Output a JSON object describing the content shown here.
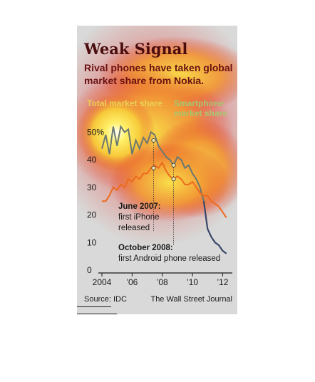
{
  "title": "Weak Signal",
  "subtitle": "Rival phones have taken global market share from Nokia.",
  "legend": {
    "total": "Total market share",
    "smartphone": "Smartphone market share"
  },
  "source": "Source: IDC",
  "credit": "The Wall Street Journal",
  "colors": {
    "total_line": "#ec6a1e",
    "smartphone_line": "#6b7770",
    "smartphone_line_late": "#3a466a"
  },
  "chart_data": {
    "type": "line",
    "title": "Weak Signal",
    "subtitle": "Rival phones have taken global market share from Nokia.",
    "xlabel": "",
    "ylabel": "",
    "x_range": [
      2004,
      2012.5
    ],
    "ylim": [
      0,
      55
    ],
    "y_ticks": [
      0,
      10,
      20,
      30,
      40,
      "50%"
    ],
    "x_ticks": [
      "2004",
      "’06",
      "’08",
      "’10",
      "’12"
    ],
    "x_tick_values": [
      2004,
      2006,
      2008,
      2010,
      2012
    ],
    "grid": false,
    "legend_placement": "top",
    "series": [
      {
        "name": "Total market share",
        "x": [
          2004.0,
          2004.25,
          2004.5,
          2004.75,
          2005.0,
          2005.25,
          2005.5,
          2005.75,
          2006.0,
          2006.25,
          2006.5,
          2006.75,
          2007.0,
          2007.25,
          2007.5,
          2007.75,
          2008.0,
          2008.25,
          2008.5,
          2008.75,
          2009.0,
          2009.25,
          2009.5,
          2009.75,
          2010.0,
          2010.25,
          2010.5,
          2010.75,
          2011.0,
          2011.25,
          2011.5,
          2011.75,
          2012.0,
          2012.25
        ],
        "values": [
          25,
          25,
          27,
          30,
          29,
          31,
          30,
          33,
          32,
          34,
          33,
          35,
          35,
          37,
          38,
          37,
          39,
          36,
          34,
          33,
          34,
          33,
          31,
          31,
          32,
          30,
          28,
          27,
          27,
          25,
          24,
          23,
          21,
          19
        ]
      },
      {
        "name": "Smartphone market share",
        "x": [
          2004.0,
          2004.25,
          2004.5,
          2004.75,
          2005.0,
          2005.25,
          2005.5,
          2005.75,
          2006.0,
          2006.25,
          2006.5,
          2006.75,
          2007.0,
          2007.25,
          2007.5,
          2007.75,
          2008.0,
          2008.25,
          2008.5,
          2008.75,
          2009.0,
          2009.25,
          2009.5,
          2009.75,
          2010.0,
          2010.25,
          2010.5,
          2010.75,
          2011.0,
          2011.25,
          2011.5,
          2011.75,
          2012.0,
          2012.25
        ],
        "values": [
          44,
          49,
          42,
          52,
          45,
          52,
          50,
          51,
          42,
          47,
          44,
          48,
          46,
          50,
          49,
          45,
          43,
          41,
          40,
          38,
          41,
          40,
          37,
          38,
          35,
          33,
          30,
          25,
          15,
          12,
          10,
          9,
          7,
          6
        ]
      }
    ],
    "annotations": [
      {
        "label": "June 2007:",
        "text": "first iPhone released",
        "x": 2007.42,
        "series": "Total market share",
        "y": 37
      },
      {
        "label": "October 2008:",
        "text": "first Android phone released",
        "x": 2008.75,
        "series": "Total market share",
        "y": 33
      },
      {
        "label": "",
        "text": "",
        "x": 2007.42,
        "series": "Smartphone market share",
        "y": 47
      },
      {
        "label": "",
        "text": "",
        "x": 2008.75,
        "series": "Smartphone market share",
        "y": 38
      }
    ]
  },
  "annotation_text": {
    "iphone_line1": "June 2007:",
    "iphone_line2": "first iPhone",
    "iphone_line3": "released",
    "android_line1": "October 2008:",
    "android_line2": "first Android phone released"
  }
}
